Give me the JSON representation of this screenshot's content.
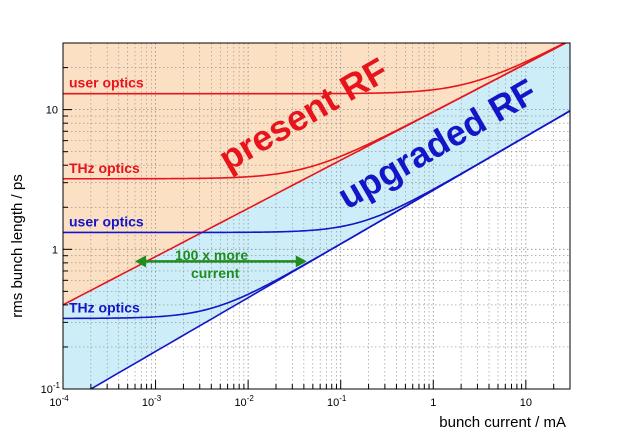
{
  "chart_data": {
    "type": "line",
    "xlabel": "bunch current / mA",
    "ylabel": "rms bunch length / ps",
    "x_scale": "log",
    "y_scale": "log",
    "xlim": [
      0.0001,
      30
    ],
    "ylim": [
      0.1,
      30
    ],
    "grid": true,
    "x_ticks": [
      {
        "value": 0.0001,
        "base": "10",
        "exp": "-4"
      },
      {
        "value": 0.001,
        "base": "10",
        "exp": "-3"
      },
      {
        "value": 0.01,
        "base": "10",
        "exp": "-2"
      },
      {
        "value": 0.1,
        "base": "10",
        "exp": "-1"
      },
      {
        "value": 1,
        "base": "1",
        "exp": ""
      },
      {
        "value": 10,
        "base": "10",
        "exp": ""
      }
    ],
    "y_ticks": [
      {
        "value": 0.1,
        "base": "10",
        "exp": "-1"
      },
      {
        "value": 1,
        "base": "1",
        "exp": ""
      },
      {
        "value": 10,
        "base": "10",
        "exp": ""
      }
    ],
    "regions": [
      {
        "name": "present RF",
        "fill": "#fce0c4",
        "bound_line": "present RF threshold"
      },
      {
        "name": "upgraded RF",
        "fill": "#cdeef8",
        "bound_line": "upgraded RF threshold"
      }
    ],
    "threshold_lines": [
      {
        "name": "present RF threshold",
        "color": "#e8141c",
        "points": [
          [
            0.0001,
            0.4
          ],
          [
            22,
            28
          ]
        ]
      },
      {
        "name": "upgraded RF threshold",
        "color": "#1414c8",
        "points": [
          [
            0.0002,
            0.1
          ],
          [
            30,
            9.8
          ]
        ]
      }
    ],
    "series": [
      {
        "name": "user optics",
        "color": "#e8141c",
        "zero_current_length": 13
      },
      {
        "name": "THz optics",
        "color": "#e8141c",
        "zero_current_length": 3.2
      },
      {
        "name": "user optics",
        "color": "#1414c8",
        "zero_current_length": 1.32
      },
      {
        "name": "THz optics",
        "color": "#1414c8",
        "zero_current_length": 0.32
      }
    ],
    "annotations": {
      "present_rf": {
        "text": "present RF",
        "color": "#e8141c"
      },
      "upgraded_rf": {
        "text": "upgraded RF",
        "color": "#1414c8"
      },
      "arrow": {
        "line1": "100 x more",
        "line2": "current",
        "color": "#1e8c1e",
        "from_x": 0.0006,
        "to_x": 0.043,
        "y": 0.82
      }
    }
  }
}
